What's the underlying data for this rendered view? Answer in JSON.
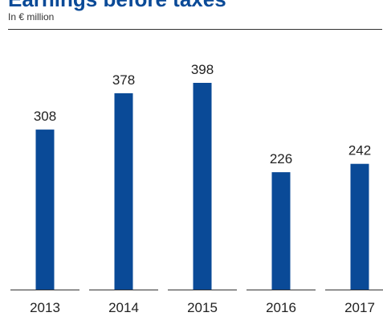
{
  "header": {
    "title": "Earnings before taxes",
    "subtitle": "In € million"
  },
  "colors": {
    "bar": "#0a4a97",
    "title": "#0a4a97",
    "axis": "#333333"
  },
  "chart_data": {
    "type": "bar",
    "categories": [
      "2013",
      "2014",
      "2015",
      "2016",
      "2017"
    ],
    "values": [
      308,
      378,
      398,
      226,
      242
    ],
    "title": "Earnings before taxes",
    "subtitle": "In € million",
    "xlabel": "",
    "ylabel": "",
    "ylim": [
      0,
      398
    ],
    "grid": false,
    "data_labels": true
  }
}
